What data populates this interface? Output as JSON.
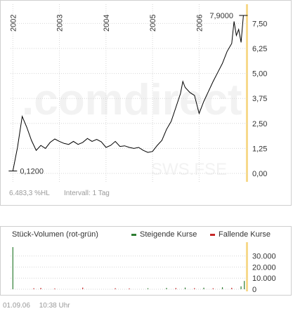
{
  "watermark": {
    "brand": ".comdirect",
    "ticker": "SWS.FSE"
  },
  "status": {
    "change": "6.483,3 %HL",
    "interval": "Intervall: 1 Tag"
  },
  "footer": {
    "date": "01.09.06",
    "time": "10:38 Uhr"
  },
  "colors": {
    "line": "#000000",
    "highlight": "#f7d98b",
    "grid": "#d6d6d6",
    "rising": "#2e7d32",
    "falling": "#c62828",
    "watermark": "#f2f2f2"
  },
  "chart_data": [
    {
      "type": "line",
      "x_ticks": [
        "2002",
        "2003",
        "2004",
        "2005",
        "2006"
      ],
      "y_ticks": [
        "0,00",
        "1,25",
        "2,50",
        "3,75",
        "5,00",
        "6,25",
        "7,50"
      ],
      "ylim": [
        0,
        7.9
      ],
      "grid": true,
      "annotations": {
        "low": "0,1200",
        "high": "7,9000"
      },
      "series": [
        {
          "points": [
            [
              2002.0,
              0.12
            ],
            [
              2002.1,
              1.3
            ],
            [
              2002.2,
              2.85
            ],
            [
              2002.3,
              2.3
            ],
            [
              2002.4,
              1.65
            ],
            [
              2002.5,
              1.15
            ],
            [
              2002.6,
              1.4
            ],
            [
              2002.7,
              1.25
            ],
            [
              2002.8,
              1.55
            ],
            [
              2002.9,
              1.72
            ],
            [
              2003.0,
              1.6
            ],
            [
              2003.1,
              1.5
            ],
            [
              2003.2,
              1.45
            ],
            [
              2003.3,
              1.6
            ],
            [
              2003.4,
              1.45
            ],
            [
              2003.5,
              1.55
            ],
            [
              2003.6,
              1.75
            ],
            [
              2003.7,
              1.6
            ],
            [
              2003.8,
              1.7
            ],
            [
              2003.9,
              1.58
            ],
            [
              2004.0,
              1.3
            ],
            [
              2004.1,
              1.4
            ],
            [
              2004.2,
              1.6
            ],
            [
              2004.3,
              1.35
            ],
            [
              2004.4,
              1.38
            ],
            [
              2004.5,
              1.3
            ],
            [
              2004.6,
              1.25
            ],
            [
              2004.7,
              1.3
            ],
            [
              2004.8,
              1.15
            ],
            [
              2004.9,
              1.05
            ],
            [
              2005.0,
              1.1
            ],
            [
              2005.1,
              1.4
            ],
            [
              2005.2,
              1.65
            ],
            [
              2005.3,
              2.2
            ],
            [
              2005.4,
              2.6
            ],
            [
              2005.5,
              3.3
            ],
            [
              2005.6,
              4.0
            ],
            [
              2005.65,
              4.6
            ],
            [
              2005.7,
              4.3
            ],
            [
              2005.8,
              4.05
            ],
            [
              2005.9,
              3.9
            ],
            [
              2006.0,
              3.0
            ],
            [
              2006.1,
              3.6
            ],
            [
              2006.2,
              4.1
            ],
            [
              2006.3,
              4.6
            ],
            [
              2006.4,
              5.05
            ],
            [
              2006.5,
              5.5
            ],
            [
              2006.6,
              6.1
            ],
            [
              2006.7,
              6.5
            ],
            [
              2006.75,
              7.6
            ],
            [
              2006.8,
              6.9
            ],
            [
              2006.85,
              7.2
            ],
            [
              2006.9,
              6.55
            ],
            [
              2006.95,
              7.9
            ]
          ]
        }
      ]
    },
    {
      "type": "bar",
      "title": "Stück-Volumen (rot-grün)",
      "legend": [
        "Steigende Kurse",
        "Fallende Kurse"
      ],
      "y_ticks": [
        "0",
        "10.000",
        "20.000",
        "30.000"
      ],
      "ylim": [
        0,
        38000
      ],
      "series": [
        {
          "name": "Steigende Kurse",
          "points": [
            [
              2002.0,
              38000
            ],
            [
              2004.9,
              900
            ],
            [
              2005.3,
              1200
            ],
            [
              2005.7,
              1500
            ],
            [
              2006.1,
              1400
            ],
            [
              2006.5,
              1800
            ],
            [
              2006.9,
              2600
            ],
            [
              2006.97,
              7500
            ]
          ]
        },
        {
          "name": "Fallende Kurse",
          "points": [
            [
              2002.45,
              900
            ],
            [
              2002.6,
              1200
            ],
            [
              2002.9,
              700
            ],
            [
              2003.5,
              1500
            ],
            [
              2004.2,
              900
            ],
            [
              2004.5,
              700
            ],
            [
              2005.5,
              1100
            ],
            [
              2005.9,
              1000
            ],
            [
              2006.3,
              900
            ],
            [
              2006.7,
              1300
            ]
          ]
        }
      ]
    }
  ]
}
